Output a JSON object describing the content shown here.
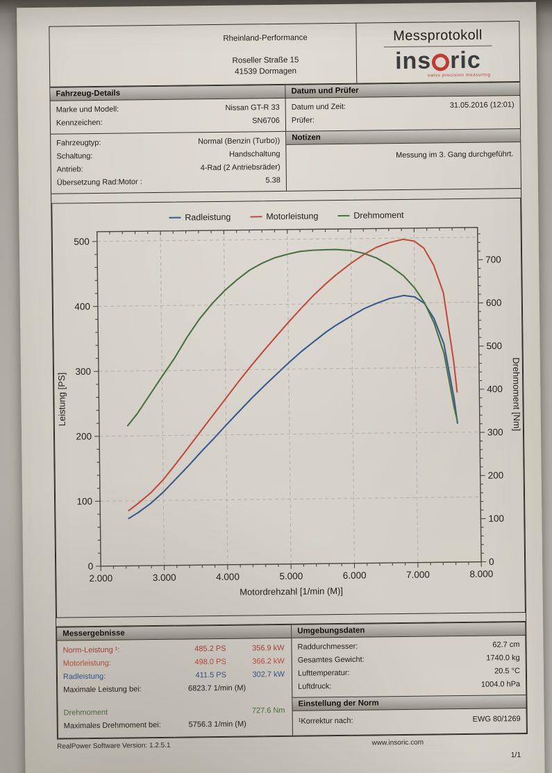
{
  "header": {
    "company": "Rheinland-Performance",
    "address1": "Roseller Straße 15",
    "address2": "41539 Dormagen",
    "doc_title": "Messprotokoll",
    "brand_prefix": "ins",
    "brand_suffix": "ric",
    "brand_tagline": "swiss precision measuring",
    "brand_accent": "#c23b32"
  },
  "vehicle": {
    "section_title": "Fahrzeug-Details",
    "rows_top": [
      {
        "label": "Marke und Modell:",
        "value": "Nissan GT-R 33"
      },
      {
        "label": "Kennzeichen:",
        "value": "SN6706"
      }
    ],
    "rows_bottom": [
      {
        "label": "Fahrzeugtyp:",
        "value": "Normal (Benzin (Turbo))"
      },
      {
        "label": "Schaltung:",
        "value": "Handschaltung"
      },
      {
        "label": "Antrieb:",
        "value": "4-Rad (2 Antriebsräder)"
      },
      {
        "label": "Übersetzung Rad:Motor :",
        "value": "5.38"
      }
    ]
  },
  "datum": {
    "section_title": "Datum und Prüfer",
    "rows": [
      {
        "label": "Datum und Zeit:",
        "value": "31.05.2016 (12:01)"
      },
      {
        "label": "Prüfer:",
        "value": ""
      }
    ]
  },
  "notes": {
    "section_title": "Notizen",
    "text": "Messung im 3. Gang durchgeführt."
  },
  "chart_data": {
    "type": "line",
    "xlabel": "Motordrehzahl [1/min (M)]",
    "ylabel_left": "Leistung [PS]",
    "ylabel_right": "Drehmoment [Nm]",
    "xlim": [
      2000,
      8000
    ],
    "ylim_left": [
      0,
      515
    ],
    "ylim_right": [
      0,
      775
    ],
    "x_ticks": [
      2000,
      3000,
      4000,
      5000,
      6000,
      7000,
      8000
    ],
    "x_tick_labels": [
      "2.000",
      "3.000",
      "4.000",
      "5.000",
      "6.000",
      "7.000",
      "8.000"
    ],
    "x_minor_step": 200,
    "y_ticks_left": [
      0,
      100,
      200,
      300,
      400,
      500
    ],
    "y_ticks_right": [
      0,
      100,
      200,
      300,
      400,
      500,
      600,
      700
    ],
    "y_minor_step": 20,
    "grid": true,
    "legend_position": "top",
    "x": [
      2450,
      2600,
      2800,
      3000,
      3200,
      3400,
      3600,
      3800,
      4000,
      4200,
      4400,
      4600,
      4800,
      5000,
      5200,
      5400,
      5600,
      5756,
      6000,
      6200,
      6400,
      6600,
      6824,
      7000,
      7150,
      7300,
      7450,
      7600,
      7650
    ],
    "series": [
      {
        "name": "Radleistung",
        "axis": "left",
        "unit": "PS",
        "color": "#3a5a8f",
        "values": [
          73,
          82,
          96,
          113,
          133,
          153,
          174,
          194,
          215,
          235,
          255,
          274,
          292,
          310,
          327,
          342,
          357,
          367,
          381,
          392,
          400,
          407,
          411.5,
          409,
          399,
          375,
          336,
          252,
          214
        ]
      },
      {
        "name": "Motorleistung",
        "axis": "left",
        "unit": "PS",
        "color": "#c14b3d",
        "values": [
          85,
          96,
          112,
          132,
          156,
          181,
          206,
          231,
          256,
          281,
          305,
          328,
          350,
          372,
          393,
          413,
          431,
          444,
          462,
          475,
          486,
          493,
          498,
          495,
          484,
          458,
          415,
          310,
          262
        ]
      },
      {
        "name": "Drehmoment",
        "axis": "right",
        "unit": "Nm",
        "color": "#4b7140",
        "values": [
          325,
          352,
          395,
          438,
          480,
          528,
          570,
          605,
          635,
          660,
          682,
          698,
          710,
          718,
          724,
          726.5,
          727.3,
          727.6,
          725,
          718,
          707,
          690,
          665,
          636,
          602,
          554,
          484,
          358,
          326
        ]
      }
    ]
  },
  "results": {
    "section_title": "Messergebnisse",
    "rows": [
      {
        "label": "Norm-Leistung ¹:",
        "ps": "485.2 PS",
        "kw": "356.9 kW",
        "color": "#a84139"
      },
      {
        "label": "Motorleistung:",
        "ps": "498.0 PS",
        "kw": "366.2 kW",
        "color": "#c14b3d"
      },
      {
        "label": "Radleistung:",
        "ps": "411.5 PS",
        "kw": "302.7 kW",
        "color": "#33568c"
      }
    ],
    "max_power": {
      "label": "Maximale Leistung bei:",
      "value": "6823.7 1/min (M)"
    },
    "torque": {
      "label": "Drehmoment",
      "value": "727.6 Nm",
      "color": "#4b7140"
    },
    "max_torque": {
      "label": "Maximales Drehmoment bei:",
      "value": "5756.3 1/min (M)"
    }
  },
  "environment": {
    "section_title": "Umgebungsdaten",
    "rows": [
      {
        "label": "Raddurchmesser:",
        "value": "62.7 cm"
      },
      {
        "label": "Gesamtes Gewicht:",
        "value": "1740.0 kg"
      },
      {
        "label": "Lufttemperatur:",
        "value": "20.5 °C"
      },
      {
        "label": "Luftdruck:",
        "value": "1004.0 hPa"
      }
    ]
  },
  "norm": {
    "section_title": "Einstellung der Norm",
    "row": {
      "label": "¹Korrektur nach:",
      "value": "EWG 80/1269"
    }
  },
  "footer": {
    "software": "RealPower Software Version: 1.2.5.1",
    "website": "www.insoric.com",
    "page": "1/1"
  }
}
